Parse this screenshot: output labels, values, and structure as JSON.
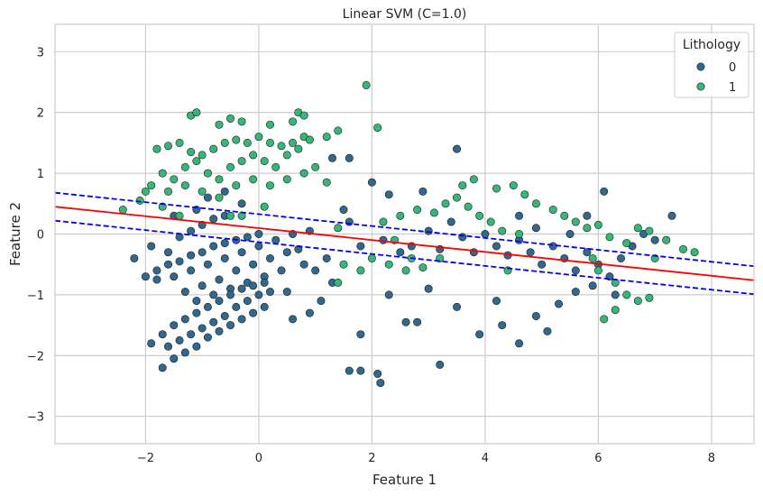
{
  "chart_data": {
    "type": "scatter",
    "title": "Linear SVM (C=1.0)",
    "xlabel": "Feature 1",
    "ylabel": "Feature 2",
    "xlim": [
      -3.6,
      8.75
    ],
    "ylim": [
      -3.45,
      3.45
    ],
    "xticks": [
      -2,
      0,
      2,
      4,
      6,
      8
    ],
    "yticks": [
      -3,
      -2,
      -1,
      0,
      1,
      2,
      3
    ],
    "grid": true,
    "legend": {
      "title": "Lithology",
      "placement": "top-right",
      "entries": [
        {
          "label": "0",
          "color": "#31688e"
        },
        {
          "label": "1",
          "color": "#35b779"
        }
      ]
    },
    "decision_boundary": {
      "color": "#ff0000",
      "style": "solid",
      "x": [
        -3.6,
        8.75
      ],
      "y": [
        0.45,
        -0.76
      ]
    },
    "margins": [
      {
        "color": "#0000ff",
        "style": "dashed",
        "x": [
          -3.6,
          8.75
        ],
        "y": [
          0.68,
          -0.53
        ]
      },
      {
        "color": "#0000ff",
        "style": "dashed",
        "x": [
          -3.6,
          8.75
        ],
        "y": [
          0.22,
          -0.99
        ]
      }
    ],
    "series": [
      {
        "name": "0",
        "color": "#31688e",
        "points": [
          [
            -2.0,
            -0.7
          ],
          [
            -1.8,
            -0.6
          ],
          [
            -1.6,
            -0.5
          ],
          [
            -1.4,
            -0.45
          ],
          [
            -1.2,
            -0.35
          ],
          [
            -1.0,
            -0.3
          ],
          [
            -0.8,
            -0.2
          ],
          [
            -0.6,
            -0.15
          ],
          [
            -0.4,
            -0.1
          ],
          [
            -0.2,
            -0.05
          ],
          [
            0.0,
            0.0
          ],
          [
            -1.8,
            -0.75
          ],
          [
            -1.5,
            -0.7
          ],
          [
            -1.2,
            -0.6
          ],
          [
            -0.9,
            -0.5
          ],
          [
            -0.6,
            -0.4
          ],
          [
            -0.3,
            -0.3
          ],
          [
            0.0,
            -0.2
          ],
          [
            0.3,
            -0.1
          ],
          [
            0.6,
            0.0
          ],
          [
            0.9,
            0.05
          ],
          [
            -1.3,
            -0.95
          ],
          [
            -1.0,
            -0.85
          ],
          [
            -0.7,
            -0.75
          ],
          [
            -0.4,
            -0.6
          ],
          [
            -0.1,
            -0.5
          ],
          [
            0.2,
            -0.4
          ],
          [
            0.5,
            -0.3
          ],
          [
            -1.1,
            -1.1
          ],
          [
            -0.8,
            -1.0
          ],
          [
            -0.5,
            -0.9
          ],
          [
            -0.2,
            -0.8
          ],
          [
            0.1,
            -0.7
          ],
          [
            0.4,
            -0.6
          ],
          [
            -1.9,
            -1.8
          ],
          [
            -1.7,
            -1.65
          ],
          [
            -1.5,
            -1.5
          ],
          [
            -1.3,
            -1.4
          ],
          [
            -1.1,
            -1.3
          ],
          [
            -0.9,
            -1.2
          ],
          [
            -0.7,
            -1.1
          ],
          [
            -0.5,
            -1.0
          ],
          [
            -0.3,
            -0.9
          ],
          [
            -0.1,
            -0.85
          ],
          [
            0.1,
            -0.8
          ],
          [
            -1.6,
            -1.85
          ],
          [
            -1.4,
            -1.75
          ],
          [
            -1.2,
            -1.65
          ],
          [
            -1.0,
            -1.55
          ],
          [
            -0.8,
            -1.45
          ],
          [
            -0.6,
            -1.35
          ],
          [
            -0.4,
            -1.2
          ],
          [
            -0.2,
            -1.1
          ],
          [
            0.0,
            -1.0
          ],
          [
            0.2,
            -0.95
          ],
          [
            -1.7,
            -2.2
          ],
          [
            -1.5,
            -2.05
          ],
          [
            -1.3,
            -1.95
          ],
          [
            -1.1,
            -1.85
          ],
          [
            -0.9,
            -1.7
          ],
          [
            -0.7,
            -1.6
          ],
          [
            -0.5,
            -1.5
          ],
          [
            -0.3,
            -1.4
          ],
          [
            -0.1,
            -1.3
          ],
          [
            0.1,
            -1.2
          ],
          [
            -1.4,
            -0.05
          ],
          [
            -1.2,
            0.05
          ],
          [
            -1.0,
            0.15
          ],
          [
            -0.8,
            0.25
          ],
          [
            -0.6,
            0.3
          ],
          [
            -1.6,
            -0.3
          ],
          [
            -2.2,
            -0.4
          ],
          [
            -1.9,
            -0.2
          ],
          [
            -1.5,
            0.3
          ],
          [
            -1.1,
            0.4
          ],
          [
            -0.9,
            0.6
          ],
          [
            -0.6,
            0.7
          ],
          [
            -0.3,
            0.5
          ],
          [
            0.5,
            -0.95
          ],
          [
            0.8,
            -0.5
          ],
          [
            1.0,
            -0.6
          ],
          [
            1.2,
            -0.4
          ],
          [
            0.7,
            -0.25
          ],
          [
            1.3,
            1.25
          ],
          [
            1.6,
            1.25
          ],
          [
            2.0,
            0.85
          ],
          [
            2.3,
            0.65
          ],
          [
            3.5,
            1.4
          ],
          [
            2.9,
            0.7
          ],
          [
            1.6,
            0.2
          ],
          [
            1.5,
            0.4
          ],
          [
            1.8,
            -0.2
          ],
          [
            2.2,
            -0.1
          ],
          [
            2.5,
            -0.3
          ],
          [
            2.7,
            -0.2
          ],
          [
            3.0,
            0.05
          ],
          [
            3.2,
            -0.25
          ],
          [
            3.4,
            0.2
          ],
          [
            3.6,
            -0.05
          ],
          [
            3.8,
            -0.3
          ],
          [
            4.0,
            0.0
          ],
          [
            4.2,
            -0.2
          ],
          [
            4.4,
            -0.35
          ],
          [
            4.6,
            -0.1
          ],
          [
            4.8,
            -0.3
          ],
          [
            5.0,
            -0.5
          ],
          [
            5.2,
            -0.2
          ],
          [
            5.4,
            -0.4
          ],
          [
            5.6,
            -0.6
          ],
          [
            5.8,
            -0.3
          ],
          [
            6.0,
            -0.5
          ],
          [
            6.2,
            -0.7
          ],
          [
            6.4,
            -0.4
          ],
          [
            6.6,
            -0.2
          ],
          [
            6.8,
            0.0
          ],
          [
            7.0,
            -0.1
          ],
          [
            7.3,
            0.3
          ],
          [
            6.1,
            0.7
          ],
          [
            5.8,
            0.3
          ],
          [
            5.5,
            0.0
          ],
          [
            4.6,
            0.3
          ],
          [
            4.9,
            0.1
          ],
          [
            2.3,
            -1.0
          ],
          [
            2.6,
            -1.45
          ],
          [
            2.8,
            -1.45
          ],
          [
            3.0,
            -0.9
          ],
          [
            3.5,
            -1.2
          ],
          [
            3.9,
            -1.65
          ],
          [
            4.3,
            -1.5
          ],
          [
            4.6,
            -1.8
          ],
          [
            4.2,
            -1.1
          ],
          [
            4.9,
            -1.35
          ],
          [
            5.1,
            -1.6
          ],
          [
            5.3,
            -1.15
          ],
          [
            5.6,
            -0.95
          ],
          [
            5.9,
            -0.85
          ],
          [
            6.3,
            -1.0
          ],
          [
            3.2,
            -2.15
          ],
          [
            2.1,
            -2.3
          ],
          [
            2.15,
            -2.45
          ],
          [
            1.6,
            -2.25
          ],
          [
            1.8,
            -2.25
          ],
          [
            1.8,
            -1.65
          ],
          [
            1.3,
            -0.8
          ],
          [
            1.1,
            -1.1
          ],
          [
            0.9,
            -1.3
          ],
          [
            0.6,
            -1.4
          ]
        ]
      },
      {
        "name": "1",
        "color": "#35b779",
        "points": [
          [
            -1.8,
            1.4
          ],
          [
            -1.6,
            1.45
          ],
          [
            -1.4,
            1.5
          ],
          [
            -1.2,
            1.35
          ],
          [
            -1.0,
            1.3
          ],
          [
            -0.8,
            1.4
          ],
          [
            -0.6,
            1.5
          ],
          [
            -0.4,
            1.55
          ],
          [
            -0.2,
            1.5
          ],
          [
            0.0,
            1.6
          ],
          [
            0.2,
            1.5
          ],
          [
            0.4,
            1.45
          ],
          [
            0.6,
            1.5
          ],
          [
            0.8,
            1.6
          ],
          [
            -1.7,
            1.0
          ],
          [
            -1.5,
            0.9
          ],
          [
            -1.3,
            1.1
          ],
          [
            -1.1,
            1.2
          ],
          [
            -0.9,
            1.0
          ],
          [
            -0.7,
            0.9
          ],
          [
            -0.5,
            1.1
          ],
          [
            -0.3,
            1.2
          ],
          [
            -0.1,
            1.3
          ],
          [
            0.1,
            1.2
          ],
          [
            0.3,
            1.1
          ],
          [
            0.5,
            1.3
          ],
          [
            0.7,
            1.4
          ],
          [
            0.9,
            1.55
          ],
          [
            -1.9,
            0.8
          ],
          [
            -1.6,
            0.7
          ],
          [
            -1.3,
            0.8
          ],
          [
            -1.0,
            0.7
          ],
          [
            -0.7,
            0.6
          ],
          [
            -0.4,
            0.8
          ],
          [
            -0.1,
            0.9
          ],
          [
            0.2,
            0.8
          ],
          [
            0.5,
            0.9
          ],
          [
            0.8,
            1.0
          ],
          [
            -1.2,
            1.95
          ],
          [
            -1.1,
            2.0
          ],
          [
            -0.7,
            1.8
          ],
          [
            -0.5,
            1.9
          ],
          [
            -0.3,
            1.85
          ],
          [
            0.2,
            1.8
          ],
          [
            0.6,
            1.85
          ],
          [
            0.7,
            2.0
          ],
          [
            0.8,
            1.95
          ],
          [
            1.2,
            1.6
          ],
          [
            1.4,
            1.7
          ],
          [
            1.9,
            2.45
          ],
          [
            2.1,
            1.75
          ],
          [
            1.0,
            1.1
          ],
          [
            1.2,
            0.85
          ],
          [
            -2.4,
            0.4
          ],
          [
            -2.1,
            0.55
          ],
          [
            -1.7,
            0.45
          ],
          [
            -1.4,
            0.3
          ],
          [
            -0.5,
            0.3
          ],
          [
            -0.3,
            0.3
          ],
          [
            0.1,
            0.45
          ],
          [
            -2.0,
            0.7
          ],
          [
            2.2,
            0.2
          ],
          [
            2.5,
            0.3
          ],
          [
            2.8,
            0.4
          ],
          [
            3.1,
            0.35
          ],
          [
            3.3,
            0.5
          ],
          [
            3.5,
            0.6
          ],
          [
            3.7,
            0.45
          ],
          [
            3.9,
            0.3
          ],
          [
            4.1,
            0.2
          ],
          [
            4.3,
            0.05
          ],
          [
            3.6,
            0.8
          ],
          [
            3.8,
            0.9
          ],
          [
            4.2,
            0.75
          ],
          [
            4.5,
            0.8
          ],
          [
            4.7,
            0.65
          ],
          [
            4.9,
            0.5
          ],
          [
            5.2,
            0.4
          ],
          [
            5.4,
            0.3
          ],
          [
            5.6,
            0.2
          ],
          [
            5.8,
            0.1
          ],
          [
            6.0,
            0.15
          ],
          [
            6.2,
            -0.05
          ],
          [
            6.5,
            -0.15
          ],
          [
            6.7,
            0.1
          ],
          [
            6.9,
            0.05
          ],
          [
            7.2,
            -0.1
          ],
          [
            7.5,
            -0.25
          ],
          [
            7.7,
            -0.3
          ],
          [
            2.3,
            -0.5
          ],
          [
            2.6,
            -0.6
          ],
          [
            2.9,
            -0.55
          ],
          [
            3.2,
            -0.4
          ],
          [
            2.0,
            -0.4
          ],
          [
            1.8,
            -0.6
          ],
          [
            1.5,
            -0.5
          ],
          [
            1.4,
            -0.8
          ],
          [
            1.4,
            0.1
          ],
          [
            2.4,
            -0.1
          ],
          [
            2.7,
            -0.4
          ],
          [
            6.0,
            -0.6
          ],
          [
            6.3,
            -0.8
          ],
          [
            6.5,
            -1.0
          ],
          [
            6.7,
            -1.1
          ],
          [
            6.9,
            -1.05
          ],
          [
            6.3,
            -1.25
          ],
          [
            6.1,
            -1.4
          ],
          [
            5.9,
            -0.4
          ],
          [
            4.6,
            0.0
          ],
          [
            4.4,
            -0.6
          ],
          [
            7.0,
            -0.4
          ]
        ]
      }
    ]
  }
}
